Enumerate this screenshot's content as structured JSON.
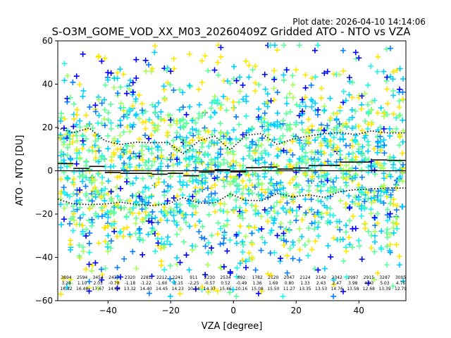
{
  "chart_data": {
    "type": "scatter",
    "plot_date": "Plot date: 2026-04-10 14:14:06",
    "title": "S-O3M_GOME_VOD_XX_M03_20260409Z Gridded ATO - NTO vs VZA",
    "xlabel": "VZA [degree]",
    "ylabel": "ATO - NTO [DU]",
    "xlim": [
      -56,
      55
    ],
    "ylim": [
      -60,
      60
    ],
    "xticks": [
      -40,
      -20,
      0,
      20,
      40
    ],
    "yticks": [
      -60,
      -40,
      -20,
      0,
      20,
      40,
      60
    ],
    "colors": {
      "deep_blue": "#0000ff",
      "azure": "#0a7dff",
      "cyan": "#00d0ff",
      "aqua": "#20f5e8",
      "mint": "#5dff9a",
      "lime": "#a6ff5a",
      "yellow": "#ffe600",
      "mean_line": "#000000"
    },
    "bins": [
      {
        "vza": -52,
        "count": "3894",
        "mean": "3.28",
        "std": "16.42",
        "mean_val": 3.28,
        "std_val": 16.42
      },
      {
        "vza": -48,
        "count": "2594",
        "mean": "1.10",
        "std": "16.48",
        "mean_val": 1.1,
        "std_val": 16.48
      },
      {
        "vza": -44,
        "count": "3454",
        "mean": "2.03",
        "std": "17.67",
        "mean_val": 2.03,
        "std_val": 17.67
      },
      {
        "vza": -40,
        "count": "2437",
        "mean": "-0.78",
        "std": "14.64",
        "mean_val": -0.78,
        "std_val": 14.64
      },
      {
        "vza": -36,
        "count": "2320",
        "mean": "-1.18",
        "std": "13.32",
        "mean_val": -1.18,
        "std_val": 13.32
      },
      {
        "vza": -32,
        "count": "2281",
        "mean": "-1.22",
        "std": "14.40",
        "mean_val": -1.22,
        "std_val": 14.4
      },
      {
        "vza": -28,
        "count": "2212",
        "mean": "-1.60",
        "std": "14.45",
        "mean_val": -1.6,
        "std_val": 14.45
      },
      {
        "vza": -24,
        "count": "2241",
        "mean": "-1.15",
        "std": "14.23",
        "mean_val": -1.15,
        "std_val": 14.23
      },
      {
        "vza": -20,
        "count": "911",
        "mean": "-2.25",
        "std": "10.14",
        "mean_val": -2.25,
        "std_val": 10.14
      },
      {
        "vza": -16,
        "count": "2230",
        "mean": "-0.57",
        "std": "14.37",
        "mean_val": -0.57,
        "std_val": 14.37
      },
      {
        "vza": -12,
        "count": "2534",
        "mean": "0.52",
        "std": "15.46",
        "mean_val": 0.52,
        "std_val": 15.46
      },
      {
        "vza": -8,
        "count": "892",
        "mean": "-0.49",
        "std": "10.16",
        "mean_val": -0.49,
        "std_val": 10.16
      },
      {
        "vza": -4,
        "count": "1782",
        "mean": "1.36",
        "std": "15.08",
        "mean_val": 1.36,
        "std_val": 15.08
      },
      {
        "vza": 0,
        "count": "2120",
        "mean": "1.69",
        "std": "15.50",
        "mean_val": 1.69,
        "std_val": 15.5
      },
      {
        "vza": 4,
        "count": "2047",
        "mean": "0.80",
        "std": "11.27",
        "mean_val": 0.8,
        "std_val": 11.27
      },
      {
        "vza": 8,
        "count": "2124",
        "mean": "1.33",
        "std": "13.35",
        "mean_val": 1.33,
        "std_val": 13.35
      },
      {
        "vza": 12,
        "count": "2142",
        "mean": "2.43",
        "std": "13.53",
        "mean_val": 2.43,
        "std_val": 13.53
      },
      {
        "vza": 16,
        "count": "2342",
        "mean": "2.47",
        "std": "14.76",
        "mean_val": 2.47,
        "std_val": 14.76
      },
      {
        "vza": 20,
        "count": "2997",
        "mean": "3.98",
        "std": "13.58",
        "mean_val": 3.98,
        "std_val": 13.58
      },
      {
        "vza": 24,
        "count": "2915",
        "mean": "4.03",
        "std": "12.68",
        "mean_val": 4.03,
        "std_val": 12.68
      },
      {
        "vza": 28,
        "count": "3287",
        "mean": "5.03",
        "std": "13.39",
        "mean_val": 5.03,
        "std_val": 13.39
      },
      {
        "vza": 32,
        "count": "3005",
        "mean": "4.75",
        "std": "12.79",
        "mean_val": 4.75,
        "std_val": 12.79
      }
    ],
    "mean_steps": [
      {
        "x0": -56,
        "x1": -51,
        "y": 3.3
      },
      {
        "x0": -51,
        "x1": -46,
        "y": 1.1
      },
      {
        "x0": -46,
        "x1": -41,
        "y": 2.0
      },
      {
        "x0": -41,
        "x1": -36,
        "y": -0.8
      },
      {
        "x0": -36,
        "x1": -31,
        "y": -1.2
      },
      {
        "x0": -31,
        "x1": -26,
        "y": -1.2
      },
      {
        "x0": -26,
        "x1": -21,
        "y": -1.6
      },
      {
        "x0": -21,
        "x1": -16,
        "y": -1.2
      },
      {
        "x0": -16,
        "x1": -11,
        "y": -2.3
      },
      {
        "x0": -11,
        "x1": -6,
        "y": -0.6
      },
      {
        "x0": -6,
        "x1": -1,
        "y": 0.5
      },
      {
        "x0": -1,
        "x1": 4,
        "y": -0.5
      },
      {
        "x0": 4,
        "x1": 9,
        "y": 1.4
      },
      {
        "x0": 9,
        "x1": 14,
        "y": 1.7
      },
      {
        "x0": 14,
        "x1": 19,
        "y": 0.8
      },
      {
        "x0": 19,
        "x1": 24,
        "y": 1.3
      },
      {
        "x0": 24,
        "x1": 29,
        "y": 2.4
      },
      {
        "x0": 29,
        "x1": 34,
        "y": 2.5
      },
      {
        "x0": 34,
        "x1": 39,
        "y": 4.0
      },
      {
        "x0": 39,
        "x1": 44,
        "y": 4.0
      },
      {
        "x0": 44,
        "x1": 49,
        "y": 5.0
      },
      {
        "x0": 49,
        "x1": 55,
        "y": 4.8
      }
    ],
    "std_upper": [
      {
        "x": -56,
        "y": 19.7
      },
      {
        "x": -51,
        "y": 17.6
      },
      {
        "x": -46,
        "y": 19.7
      },
      {
        "x": -41,
        "y": 13.9
      },
      {
        "x": -36,
        "y": 12.1
      },
      {
        "x": -31,
        "y": 13.2
      },
      {
        "x": -26,
        "y": 12.9
      },
      {
        "x": -21,
        "y": 13.1
      },
      {
        "x": -16,
        "y": 7.9
      },
      {
        "x": -11,
        "y": 13.8
      },
      {
        "x": -6,
        "y": 16.0
      },
      {
        "x": -1,
        "y": 9.7
      },
      {
        "x": 4,
        "y": 16.4
      },
      {
        "x": 9,
        "y": 17.2
      },
      {
        "x": 14,
        "y": 12.1
      },
      {
        "x": 19,
        "y": 14.7
      },
      {
        "x": 24,
        "y": 16.0
      },
      {
        "x": 29,
        "y": 17.2
      },
      {
        "x": 34,
        "y": 17.6
      },
      {
        "x": 39,
        "y": 16.7
      },
      {
        "x": 44,
        "y": 18.4
      },
      {
        "x": 49,
        "y": 17.5
      },
      {
        "x": 55,
        "y": 17.5
      }
    ],
    "std_lower": [
      {
        "x": -56,
        "y": -13.1
      },
      {
        "x": -51,
        "y": -15.4
      },
      {
        "x": -46,
        "y": -15.6
      },
      {
        "x": -41,
        "y": -15.4
      },
      {
        "x": -36,
        "y": -14.5
      },
      {
        "x": -31,
        "y": -15.6
      },
      {
        "x": -26,
        "y": -16.1
      },
      {
        "x": -21,
        "y": -15.4
      },
      {
        "x": -16,
        "y": -12.4
      },
      {
        "x": -11,
        "y": -14.9
      },
      {
        "x": -6,
        "y": -14.9
      },
      {
        "x": -1,
        "y": -10.7
      },
      {
        "x": 4,
        "y": -13.7
      },
      {
        "x": 9,
        "y": -13.8
      },
      {
        "x": 14,
        "y": -10.5
      },
      {
        "x": 19,
        "y": -12.0
      },
      {
        "x": 24,
        "y": -11.1
      },
      {
        "x": 29,
        "y": -12.3
      },
      {
        "x": 34,
        "y": -9.6
      },
      {
        "x": 39,
        "y": -8.7
      },
      {
        "x": 44,
        "y": -8.4
      },
      {
        "x": 49,
        "y": -8.0
      },
      {
        "x": 55,
        "y": -8.0
      }
    ],
    "scatter_density": "dense columns of plus markers at every 1 degree VZA, spread approx -60 to 60 DU"
  }
}
